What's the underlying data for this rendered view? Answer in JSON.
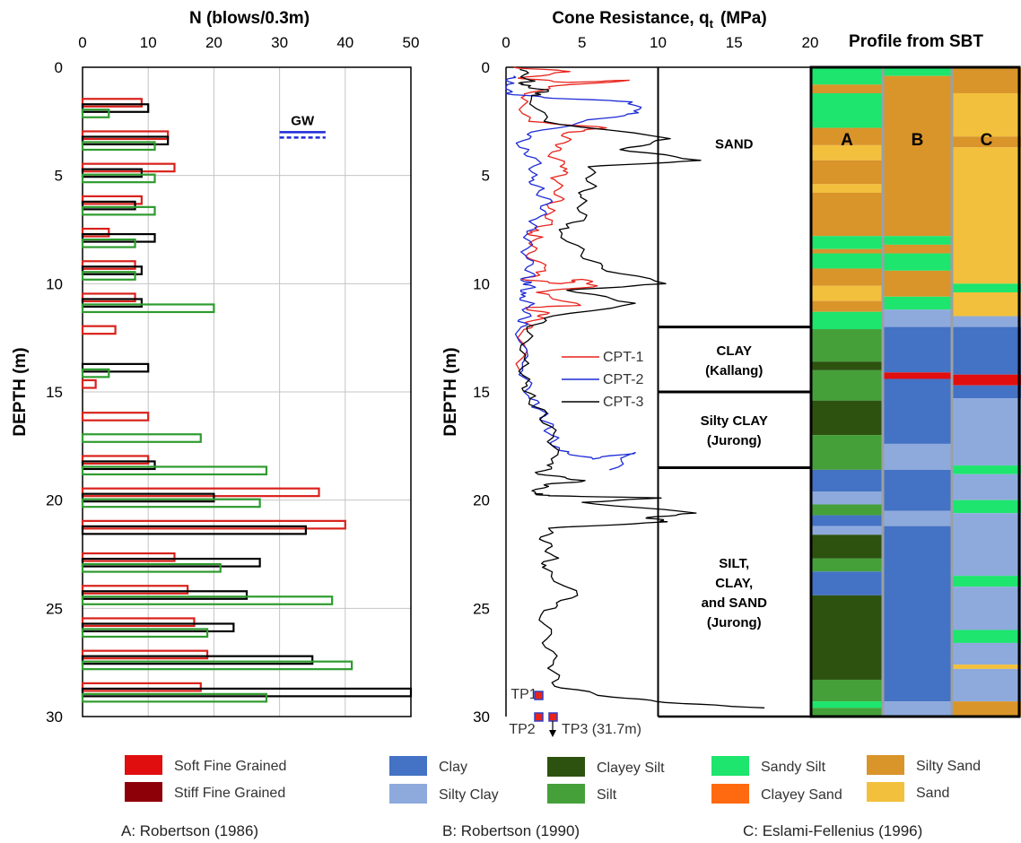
{
  "chart_data": [
    {
      "type": "bar",
      "title": "N  (blows/0.3m)",
      "ylabel": "DEPTH  (m)",
      "xlim": [
        0,
        50
      ],
      "ylim": [
        30,
        0
      ],
      "xticks": [
        "0",
        "10",
        "20",
        "30",
        "40",
        "50"
      ],
      "yticks": [
        "0",
        "5",
        "10",
        "15",
        "20",
        "25",
        "30"
      ],
      "grid": true,
      "annotation": "GW",
      "gw_depth": 3.0,
      "groups": [
        {
          "depth": 2.0,
          "red": 9,
          "black": 10,
          "green": 4
        },
        {
          "depth": 3.5,
          "red": 13,
          "black": 13,
          "green": 11
        },
        {
          "depth": 5.0,
          "red": 14,
          "black": 9,
          "green": 11
        },
        {
          "depth": 6.5,
          "red": 9,
          "black": 8,
          "green": 11
        },
        {
          "depth": 8.0,
          "red": 4,
          "black": 11,
          "green": 8
        },
        {
          "depth": 9.5,
          "red": 8,
          "black": 9,
          "green": 8
        },
        {
          "depth": 11.0,
          "red": 8,
          "black": 9,
          "green": 20
        },
        {
          "depth": 12.5,
          "red": 5,
          "black": null,
          "green": null
        },
        {
          "depth": 14.0,
          "red": null,
          "black": 10,
          "green": 4
        },
        {
          "depth": 15.0,
          "red": 2,
          "black": null,
          "green": null
        },
        {
          "depth": 16.5,
          "red": 10,
          "black": null,
          "green": null
        },
        {
          "depth": 17.0,
          "red": null,
          "black": null,
          "green": 18
        },
        {
          "depth": 18.5,
          "red": 10,
          "black": 11,
          "green": 28
        },
        {
          "depth": 20.0,
          "red": 36,
          "black": 20,
          "green": 27
        },
        {
          "depth": 21.5,
          "red": 40,
          "black": 34,
          "green": null
        },
        {
          "depth": 23.0,
          "red": 14,
          "black": 27,
          "green": 21
        },
        {
          "depth": 24.5,
          "red": 16,
          "black": 25,
          "green": 38
        },
        {
          "depth": 26.0,
          "red": 17,
          "black": 23,
          "green": 19
        },
        {
          "depth": 27.5,
          "red": 19,
          "black": 35,
          "green": 41
        },
        {
          "depth": 29.0,
          "red": 18,
          "black": 50,
          "green": 28
        }
      ]
    },
    {
      "type": "line",
      "title_main": "Cone Resistance, q",
      "title_sub": "t",
      "title_unit": "(MPa)",
      "ylabel": "DEPTH  (m)",
      "xlim": [
        0,
        20
      ],
      "ylim": [
        30,
        0
      ],
      "xticks": [
        "0",
        "5",
        "10",
        "15",
        "20"
      ],
      "yticks": [
        "0",
        "5",
        "10",
        "15",
        "20",
        "25",
        "30"
      ],
      "series": [
        {
          "name": "CPT-1",
          "color": "#e8231b",
          "end": 14.0,
          "values": [
            [
              0.5,
              0
            ],
            [
              4.2,
              0.2
            ],
            [
              0.8,
              0.5
            ],
            [
              4.0,
              0.7
            ],
            [
              8.1,
              0.6
            ],
            [
              2.8,
              0.9
            ],
            [
              1.0,
              1.4
            ],
            [
              1.5,
              2.5
            ],
            [
              6.6,
              2.8
            ],
            [
              4.1,
              3.0
            ],
            [
              3.8,
              3.5
            ],
            [
              2.9,
              4.0
            ],
            [
              4.0,
              4.7
            ],
            [
              3.2,
              5.2
            ],
            [
              3.6,
              6.0
            ],
            [
              2.8,
              6.5
            ],
            [
              3.0,
              7.2
            ],
            [
              1.6,
              7.6
            ],
            [
              2.1,
              7.9
            ],
            [
              1.5,
              8.6
            ],
            [
              2.6,
              9.4
            ],
            [
              1.1,
              9.8
            ],
            [
              3.6,
              10.0
            ],
            [
              5.0,
              9.8
            ],
            [
              6.0,
              10.1
            ],
            [
              2.0,
              10.4
            ],
            [
              4.9,
              11.0
            ],
            [
              1.3,
              11.1
            ],
            [
              2.7,
              11.4
            ],
            [
              1.8,
              11.7
            ],
            [
              1.1,
              12.2
            ],
            [
              0.9,
              14.0
            ]
          ]
        },
        {
          "name": "CPT-2",
          "color": "#1c2ad6",
          "end": 18.6,
          "values": [
            [
              0.5,
              0.4
            ],
            [
              0.1,
              0.8
            ],
            [
              0.0,
              1.2
            ],
            [
              2.5,
              1.4
            ],
            [
              8.3,
              1.6
            ],
            [
              8.7,
              2.1
            ],
            [
              5.1,
              2.5
            ],
            [
              1.4,
              3.1
            ],
            [
              0.9,
              3.7
            ],
            [
              2.1,
              4.3
            ],
            [
              1.7,
              5.1
            ],
            [
              2.2,
              5.7
            ],
            [
              2.8,
              6.3
            ],
            [
              2.0,
              7.0
            ],
            [
              1.4,
              7.7
            ],
            [
              1.3,
              8.7
            ],
            [
              1.7,
              9.5
            ],
            [
              1.2,
              9.9
            ],
            [
              1.7,
              10.1
            ],
            [
              1.0,
              10.5
            ],
            [
              1.6,
              11.0
            ],
            [
              1.2,
              11.6
            ],
            [
              1.0,
              12.0
            ],
            [
              1.1,
              14.0
            ],
            [
              1.5,
              15.2
            ],
            [
              2.2,
              15.8
            ],
            [
              2.7,
              16.4
            ],
            [
              3.0,
              17.0
            ],
            [
              3.5,
              17.7
            ],
            [
              5.7,
              18.1
            ],
            [
              8.5,
              17.8
            ],
            [
              6.8,
              18.6
            ]
          ]
        },
        {
          "name": "CPT-3",
          "color": "#000000",
          "end": 29.6,
          "values": [
            [
              0.9,
              0.1
            ],
            [
              1.6,
              0.6
            ],
            [
              1.0,
              0.8
            ],
            [
              2.8,
              1.1
            ],
            [
              1.7,
              1.3
            ],
            [
              2.5,
              2.5
            ],
            [
              10.8,
              3.3
            ],
            [
              7.5,
              3.8
            ],
            [
              12.8,
              4.3
            ],
            [
              5.4,
              4.6
            ],
            [
              5.7,
              5.4
            ],
            [
              4.9,
              6.0
            ],
            [
              5.2,
              7.0
            ],
            [
              3.5,
              7.5
            ],
            [
              5.0,
              8.6
            ],
            [
              6.3,
              9.3
            ],
            [
              10.5,
              10.0
            ],
            [
              4.0,
              10.3
            ],
            [
              8.5,
              10.9
            ],
            [
              2.5,
              11.6
            ],
            [
              1.4,
              12.2
            ],
            [
              1.2,
              13.5
            ],
            [
              1.3,
              14.6
            ],
            [
              1.6,
              15.3
            ],
            [
              2.5,
              16.1
            ],
            [
              3.1,
              17.1
            ],
            [
              3.1,
              18.3
            ],
            [
              2.1,
              18.8
            ],
            [
              5.2,
              19.1
            ],
            [
              2.5,
              19.3
            ],
            [
              1.9,
              19.7
            ],
            [
              2.8,
              19.8
            ],
            [
              10.2,
              19.9
            ],
            [
              5.0,
              20.1
            ],
            [
              12.5,
              20.6
            ],
            [
              9.3,
              20.8
            ],
            [
              10.6,
              21.0
            ],
            [
              2.8,
              21.3
            ],
            [
              2.5,
              21.9
            ],
            [
              3.2,
              22.6
            ],
            [
              2.4,
              23.1
            ],
            [
              4.7,
              24.4
            ],
            [
              2.5,
              25.1
            ],
            [
              2.7,
              26.4
            ],
            [
              3.1,
              27.6
            ],
            [
              3.2,
              28.6
            ],
            [
              7.0,
              29.1
            ],
            [
              11.6,
              29.4
            ],
            [
              17.0,
              29.6
            ]
          ]
        }
      ],
      "zones": [
        {
          "label": "SAND",
          "top": 0,
          "bottom": 12.0
        },
        {
          "label": "CLAY\n(Kallang)",
          "top": 12.0,
          "bottom": 15.0
        },
        {
          "label": "Silty CLAY\n(Jurong)",
          "top": 15.0,
          "bottom": 18.5
        },
        {
          "label": "SILT,\nCLAY,\nand SAND\n(Jurong)",
          "top": 18.5,
          "bottom": 30
        }
      ],
      "test_points": [
        {
          "label": "TP1",
          "depth": 29.0
        },
        {
          "label": "TP2",
          "depth": 30.0
        },
        {
          "label": "TP3 (31.7m)",
          "depth": 30.0
        }
      ]
    },
    {
      "type": "heatmap",
      "title": "Profile from SBT",
      "columns": [
        "A",
        "B",
        "C"
      ],
      "ylim": [
        0,
        30
      ],
      "colors": {
        "Soft Fine Grained": "#e00e0e",
        "Stiff Fine Grained": "#8e0008",
        "Clay": "#4472c4",
        "Silty Clay": "#8eaadc",
        "Clayey Silt": "#2d5210",
        "Silt": "#45a03a",
        "Sandy Silt": "#1de56d",
        "Clayey Sand": "#ff6a10",
        "Silty Sand": "#d9942a",
        "Sand": "#f2c03c"
      },
      "profiles": {
        "A": [
          [
            "Sandy Silt",
            0,
            0.8
          ],
          [
            "Silty Sand",
            0.8,
            1.2
          ],
          [
            "Sandy Silt",
            1.2,
            2.8
          ],
          [
            "Silty Sand",
            2.8,
            3.6
          ],
          [
            "Sand",
            3.6,
            4.3
          ],
          [
            "Silty Sand",
            4.3,
            5.4
          ],
          [
            "Sand",
            5.4,
            5.8
          ],
          [
            "Silty Sand",
            5.8,
            7.8
          ],
          [
            "Sandy Silt",
            7.8,
            8.4
          ],
          [
            "Silty Sand",
            8.4,
            8.6
          ],
          [
            "Sandy Silt",
            8.6,
            9.3
          ],
          [
            "Silty Sand",
            9.3,
            10.1
          ],
          [
            "Sand",
            10.1,
            10.8
          ],
          [
            "Silty Sand",
            10.8,
            11.3
          ],
          [
            "Sandy Silt",
            11.3,
            12.1
          ],
          [
            "Silt",
            12.1,
            13.6
          ],
          [
            "Clayey Silt",
            13.6,
            14.0
          ],
          [
            "Silt",
            14.0,
            15.4
          ],
          [
            "Clayey Silt",
            15.4,
            17.0
          ],
          [
            "Silt",
            17.0,
            18.6
          ],
          [
            "Clay",
            18.6,
            19.6
          ],
          [
            "Silty Clay",
            19.6,
            20.2
          ],
          [
            "Silt",
            20.2,
            20.7
          ],
          [
            "Clay",
            20.7,
            21.2
          ],
          [
            "Silty Clay",
            21.2,
            21.6
          ],
          [
            "Clayey Silt",
            21.6,
            22.7
          ],
          [
            "Silt",
            22.7,
            23.3
          ],
          [
            "Clay",
            23.3,
            24.4
          ],
          [
            "Clayey Silt",
            24.4,
            28.3
          ],
          [
            "Silt",
            28.3,
            29.3
          ],
          [
            "Sandy Silt",
            29.3,
            29.6
          ],
          [
            "Silt",
            29.6,
            30
          ]
        ],
        "B": [
          [
            "Sandy Silt",
            0,
            0.4
          ],
          [
            "Silty Sand",
            0.4,
            7.8
          ],
          [
            "Sandy Silt",
            7.8,
            8.2
          ],
          [
            "Silty Sand",
            8.2,
            8.6
          ],
          [
            "Sandy Silt",
            8.6,
            9.4
          ],
          [
            "Silty Sand",
            9.4,
            10.6
          ],
          [
            "Sandy Silt",
            10.6,
            11.2
          ],
          [
            "Silty Clay",
            11.2,
            12.0
          ],
          [
            "Clay",
            12.0,
            14.1
          ],
          [
            "Soft Fine Grained",
            14.1,
            14.4
          ],
          [
            "Clay",
            14.4,
            17.4
          ],
          [
            "Silty Clay",
            17.4,
            18.6
          ],
          [
            "Clay",
            18.6,
            20.5
          ],
          [
            "Silty Clay",
            20.5,
            21.2
          ],
          [
            "Clay",
            21.2,
            29.3
          ],
          [
            "Silty Clay",
            29.3,
            30
          ]
        ],
        "C": [
          [
            "Silty Sand",
            0,
            1.2
          ],
          [
            "Sand",
            1.2,
            3.2
          ],
          [
            "Silty Sand",
            3.2,
            3.7
          ],
          [
            "Sand",
            3.7,
            10.0
          ],
          [
            "Sandy Silt",
            10.0,
            10.4
          ],
          [
            "Sand",
            10.4,
            11.5
          ],
          [
            "Silty Clay",
            11.5,
            12.0
          ],
          [
            "Clay",
            12.0,
            14.2
          ],
          [
            "Soft Fine Grained",
            14.2,
            14.7
          ],
          [
            "Clay",
            14.7,
            15.3
          ],
          [
            "Silty Clay",
            15.3,
            18.4
          ],
          [
            "Sandy Silt",
            18.4,
            18.8
          ],
          [
            "Silty Clay",
            18.8,
            20.0
          ],
          [
            "Sandy Silt",
            20.0,
            20.6
          ],
          [
            "Silty Clay",
            20.6,
            23.5
          ],
          [
            "Sandy Silt",
            23.5,
            24.0
          ],
          [
            "Silty Clay",
            24.0,
            26.0
          ],
          [
            "Sandy Silt",
            26.0,
            26.6
          ],
          [
            "Silty Clay",
            26.6,
            27.6
          ],
          [
            "Sand",
            27.6,
            27.8
          ],
          [
            "Silty Clay",
            27.8,
            29.3
          ],
          [
            "Silty Sand",
            29.3,
            30
          ]
        ]
      }
    }
  ],
  "legend": {
    "items": [
      {
        "label": "Soft Fine Grained",
        "color": "#e00e0e"
      },
      {
        "label": "Stiff Fine Grained",
        "color": "#8e0008"
      },
      {
        "label": "Clay",
        "color": "#4472c4"
      },
      {
        "label": "Silty Clay",
        "color": "#8eaadc"
      },
      {
        "label": "Clayey Silt",
        "color": "#2d5210"
      },
      {
        "label": "Silt",
        "color": "#45a03a"
      },
      {
        "label": "Sandy Silt",
        "color": "#1de56d"
      },
      {
        "label": "Clayey Sand",
        "color": "#ff6a10"
      },
      {
        "label": "Silty Sand",
        "color": "#d9942a"
      },
      {
        "label": "Sand",
        "color": "#f2c03c"
      }
    ]
  },
  "citations": {
    "a": "A: Robertson (1986)",
    "b": "B: Robertson (1990)",
    "c": "C: Eslami-Fellenius  (1996)"
  }
}
